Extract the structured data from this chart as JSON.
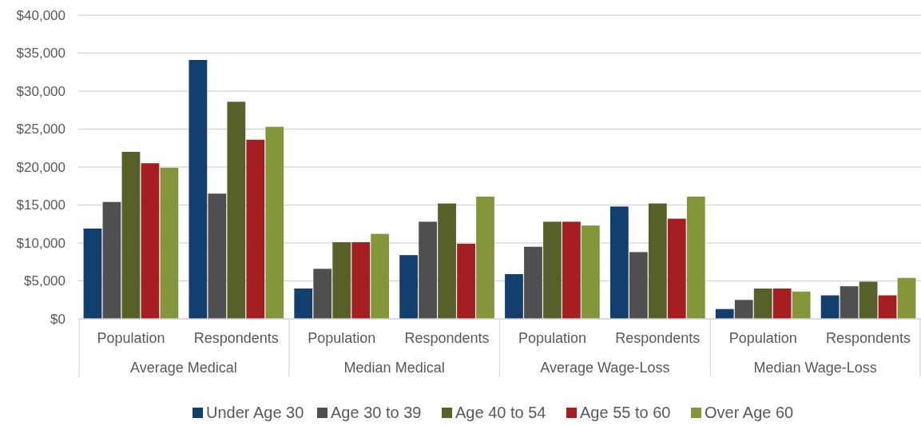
{
  "chart_data": {
    "type": "bar",
    "categories": [
      "Population",
      "Respondents",
      "Population",
      "Respondents",
      "Population",
      "Respondents",
      "Population",
      "Respondents"
    ],
    "annotations": [
      "Average Medical",
      "Median Medical",
      "Average Wage-Loss",
      "Median Wage-Loss"
    ],
    "series": [
      {
        "name": "Under Age 30",
        "color": "#133f6e",
        "values": [
          11900,
          34100,
          4000,
          8400,
          5900,
          14800,
          1300,
          3100
        ]
      },
      {
        "name": "Age 30 to 39",
        "color": "#4f4f4f",
        "values": [
          15400,
          16500,
          6600,
          12800,
          9500,
          8800,
          2500,
          4300
        ]
      },
      {
        "name": "Age 40 to 54",
        "color": "#566129",
        "values": [
          22000,
          28600,
          10100,
          15200,
          12800,
          15200,
          4000,
          4900
        ]
      },
      {
        "name": "Age 55 to 60",
        "color": "#a51e22",
        "values": [
          20500,
          23600,
          10100,
          9900,
          12800,
          13200,
          4000,
          3100
        ]
      },
      {
        "name": "Over Age 60",
        "color": "#84963a",
        "values": [
          19900,
          25300,
          11200,
          16100,
          12300,
          16100,
          3600,
          5400
        ]
      }
    ],
    "ylim": [
      0,
      40000
    ],
    "yticks": [
      {
        "value": 0,
        "label": "$0"
      },
      {
        "value": 5000,
        "label": "$5,000"
      },
      {
        "value": 10000,
        "label": "$10,000"
      },
      {
        "value": 15000,
        "label": "$15,000"
      },
      {
        "value": 20000,
        "label": "$20,000"
      },
      {
        "value": 25000,
        "label": "$25,000"
      },
      {
        "value": 30000,
        "label": "$30,000"
      },
      {
        "value": 35000,
        "label": "$35,000"
      },
      {
        "value": 40000,
        "label": "$40,000"
      }
    ],
    "grid": "y",
    "legend": "bottom"
  }
}
